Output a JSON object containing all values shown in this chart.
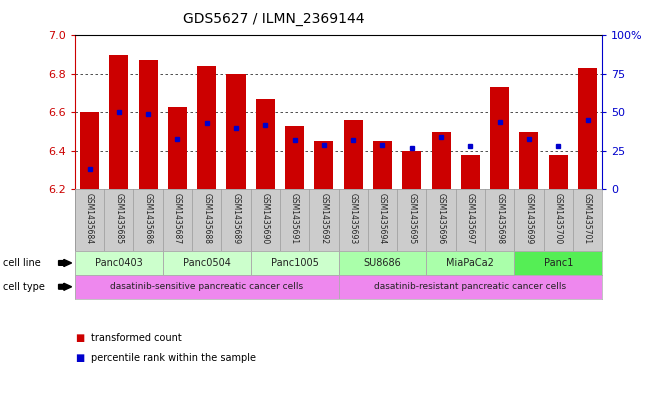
{
  "title": "GDS5627 / ILMN_2369144",
  "samples": [
    "GSM1435684",
    "GSM1435685",
    "GSM1435686",
    "GSM1435687",
    "GSM1435688",
    "GSM1435689",
    "GSM1435690",
    "GSM1435691",
    "GSM1435692",
    "GSM1435693",
    "GSM1435694",
    "GSM1435695",
    "GSM1435696",
    "GSM1435697",
    "GSM1435698",
    "GSM1435699",
    "GSM1435700",
    "GSM1435701"
  ],
  "transformed_count": [
    6.6,
    6.9,
    6.87,
    6.63,
    6.84,
    6.8,
    6.67,
    6.53,
    6.45,
    6.56,
    6.45,
    6.4,
    6.5,
    6.38,
    6.73,
    6.5,
    6.38,
    6.83
  ],
  "percentile_rank": [
    0.13,
    0.5,
    0.49,
    0.33,
    0.43,
    0.4,
    0.42,
    0.32,
    0.29,
    0.32,
    0.29,
    0.27,
    0.34,
    0.28,
    0.44,
    0.33,
    0.28,
    0.45
  ],
  "ylim_left": [
    6.2,
    7.0
  ],
  "ylim_right": [
    0,
    100
  ],
  "yticks_left": [
    6.2,
    6.4,
    6.6,
    6.8,
    7.0
  ],
  "yticks_right": [
    0,
    25,
    50,
    75,
    100
  ],
  "yticklabels_right": [
    "0",
    "25",
    "50",
    "75",
    "100%"
  ],
  "bar_color": "#cc0000",
  "marker_color": "#0000cc",
  "bar_bottom": 6.2,
  "cell_lines": [
    {
      "name": "Panc0403",
      "start": 0,
      "end": 3
    },
    {
      "name": "Panc0504",
      "start": 3,
      "end": 6
    },
    {
      "name": "Panc1005",
      "start": 6,
      "end": 9
    },
    {
      "name": "SU8686",
      "start": 9,
      "end": 12
    },
    {
      "name": "MiaPaCa2",
      "start": 12,
      "end": 15
    },
    {
      "name": "Panc1",
      "start": 15,
      "end": 18
    }
  ],
  "cell_line_colors": [
    "#ccffcc",
    "#ccffcc",
    "#ccffcc",
    "#aaffaa",
    "#aaffaa",
    "#55ee55"
  ],
  "cell_types": [
    {
      "name": "dasatinib-sensitive pancreatic cancer cells",
      "start": 0,
      "end": 9
    },
    {
      "name": "dasatinib-resistant pancreatic cancer cells",
      "start": 9,
      "end": 18
    }
  ],
  "cell_type_colors": [
    "#ee88ee",
    "#ee88ee"
  ],
  "left_axis_color": "#cc0000",
  "right_axis_color": "#0000cc",
  "label_gray": "#cccccc",
  "grid_dotted_color": "#555555",
  "background_color": "#ffffff"
}
